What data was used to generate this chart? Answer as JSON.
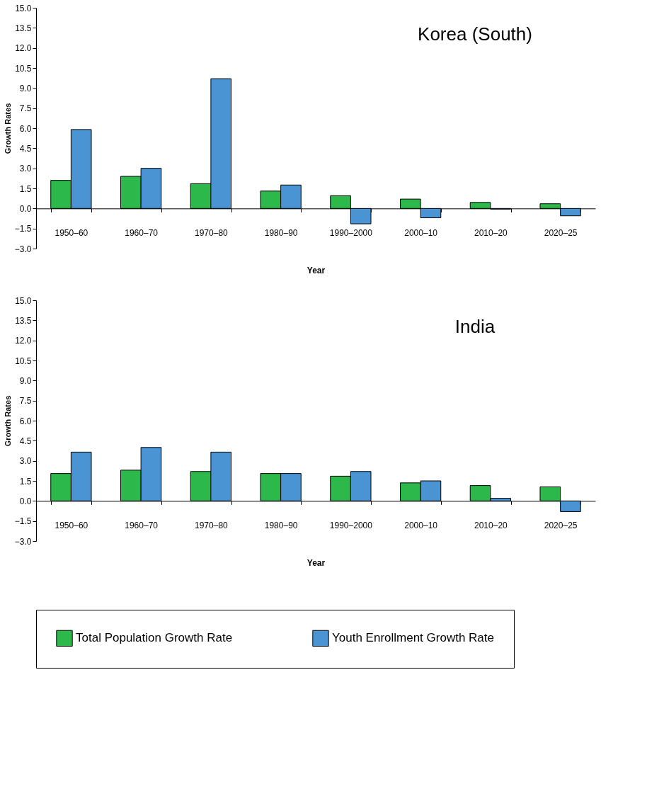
{
  "chart_data": [
    {
      "type": "bar",
      "title": "Korea (South)",
      "xlabel": "Year",
      "ylabel": "Growth Rates",
      "categories": [
        "1950–60",
        "1960–70",
        "1970–80",
        "1980–90",
        "1990–2000",
        "2000–10",
        "2010–20",
        "2020–25"
      ],
      "series": [
        {
          "name": "Total Population Growth Rate",
          "color": "#2db84b",
          "values": [
            2.1,
            2.4,
            1.85,
            1.3,
            0.95,
            0.7,
            0.45,
            0.35
          ]
        },
        {
          "name": "Youth Enrollment Growth Rate",
          "color": "#4a94d4",
          "values": [
            5.9,
            3.0,
            9.7,
            1.75,
            -1.15,
            -0.7,
            -0.05,
            -0.55
          ]
        }
      ],
      "ylim": [
        -3.0,
        15.0
      ],
      "yticks": [
        {
          "value": -3,
          "label": "−3.0"
        },
        {
          "value": -1.5,
          "label": "−1.5"
        },
        {
          "value": 0,
          "label": "0.0"
        },
        {
          "value": 1.5,
          "label": "1.5"
        },
        {
          "value": 3,
          "label": "3.0"
        },
        {
          "value": 4.5,
          "label": "4.5"
        },
        {
          "value": 6,
          "label": "6.0"
        },
        {
          "value": 7.5,
          "label": "7.5"
        },
        {
          "value": 9,
          "label": "9.0"
        },
        {
          "value": 10.5,
          "label": "10.5"
        },
        {
          "value": 12,
          "label": "12.0"
        },
        {
          "value": 13.5,
          "label": "13.5"
        },
        {
          "value": 15,
          "label": "15.0"
        }
      ],
      "grid": false,
      "legend": "bottom"
    },
    {
      "type": "bar",
      "title": "India",
      "xlabel": "Year",
      "ylabel": "Growth Rates",
      "categories": [
        "1950–60",
        "1960–70",
        "1970–80",
        "1980–90",
        "1990–2000",
        "2000–10",
        "2010–20",
        "2020–25"
      ],
      "series": [
        {
          "name": "Total Population Growth Rate",
          "color": "#2db84b",
          "values": [
            2.05,
            2.3,
            2.2,
            2.05,
            1.85,
            1.35,
            1.15,
            1.05
          ]
        },
        {
          "name": "Youth Enrollment Growth Rate",
          "color": "#4a94d4",
          "values": [
            3.65,
            4.0,
            3.65,
            2.05,
            2.2,
            1.5,
            0.2,
            -0.8
          ]
        }
      ],
      "ylim": [
        -3.0,
        15.0
      ],
      "yticks": [
        {
          "value": -3,
          "label": "−3.0"
        },
        {
          "value": -1.5,
          "label": "−1.5"
        },
        {
          "value": 0,
          "label": "0.0"
        },
        {
          "value": 1.5,
          "label": "1.5"
        },
        {
          "value": 3,
          "label": "3.0"
        },
        {
          "value": 4.5,
          "label": "4.5"
        },
        {
          "value": 6,
          "label": "6.0"
        },
        {
          "value": 7.5,
          "label": "7.5"
        },
        {
          "value": 9,
          "label": "9.0"
        },
        {
          "value": 10.5,
          "label": "10.5"
        },
        {
          "value": 12,
          "label": "12.0"
        },
        {
          "value": 13.5,
          "label": "13.5"
        },
        {
          "value": 15,
          "label": "15.0"
        }
      ],
      "grid": false,
      "legend": "bottom"
    }
  ]
}
